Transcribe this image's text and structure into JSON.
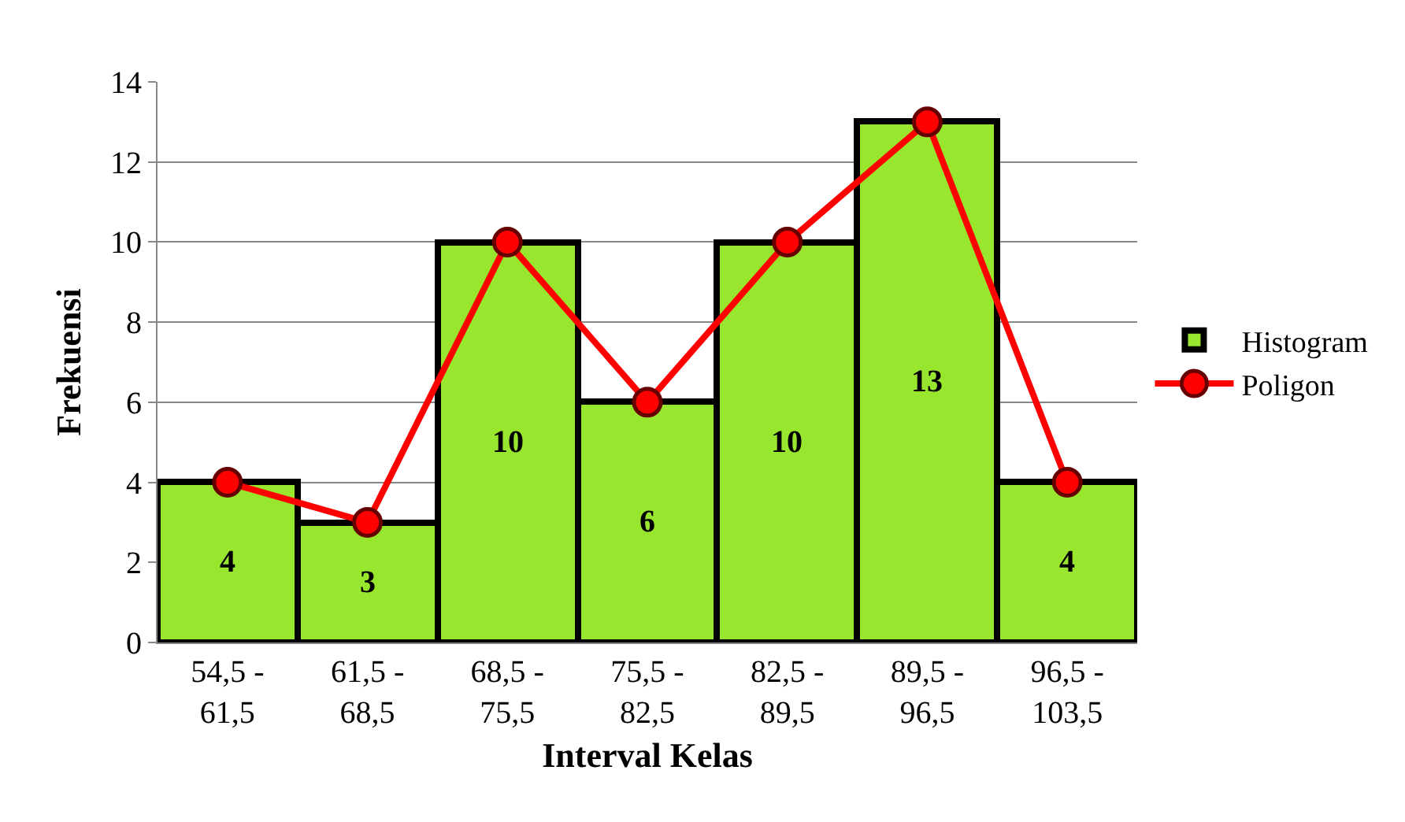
{
  "chart_data": {
    "type": "bar",
    "xlabel": "Interval Kelas",
    "ylabel": "Frekuensi",
    "categories": [
      "54,5 - 61,5",
      "61,5 - 68,5",
      "68,5 - 75,5",
      "75,5 - 82,5",
      "82,5 - 89,5",
      "89,5 - 96,5",
      "96,5 - 103,5"
    ],
    "series": [
      {
        "name": "Histogram",
        "color": "#99e62e",
        "values": [
          4,
          3,
          10,
          6,
          10,
          13,
          4
        ],
        "value_labels": [
          "4",
          "3",
          "10",
          "6",
          "10",
          "13",
          "4"
        ]
      },
      {
        "name": "Poligon",
        "type": "line",
        "color": "#ff0000",
        "values": [
          4,
          3,
          10,
          6,
          10,
          13,
          4
        ]
      }
    ],
    "ylim": [
      0,
      14
    ],
    "yticks": [
      0,
      2,
      4,
      6,
      8,
      10,
      12,
      14
    ],
    "grid": "y",
    "legend": "right",
    "marker": "circle",
    "line_style": "solid"
  }
}
